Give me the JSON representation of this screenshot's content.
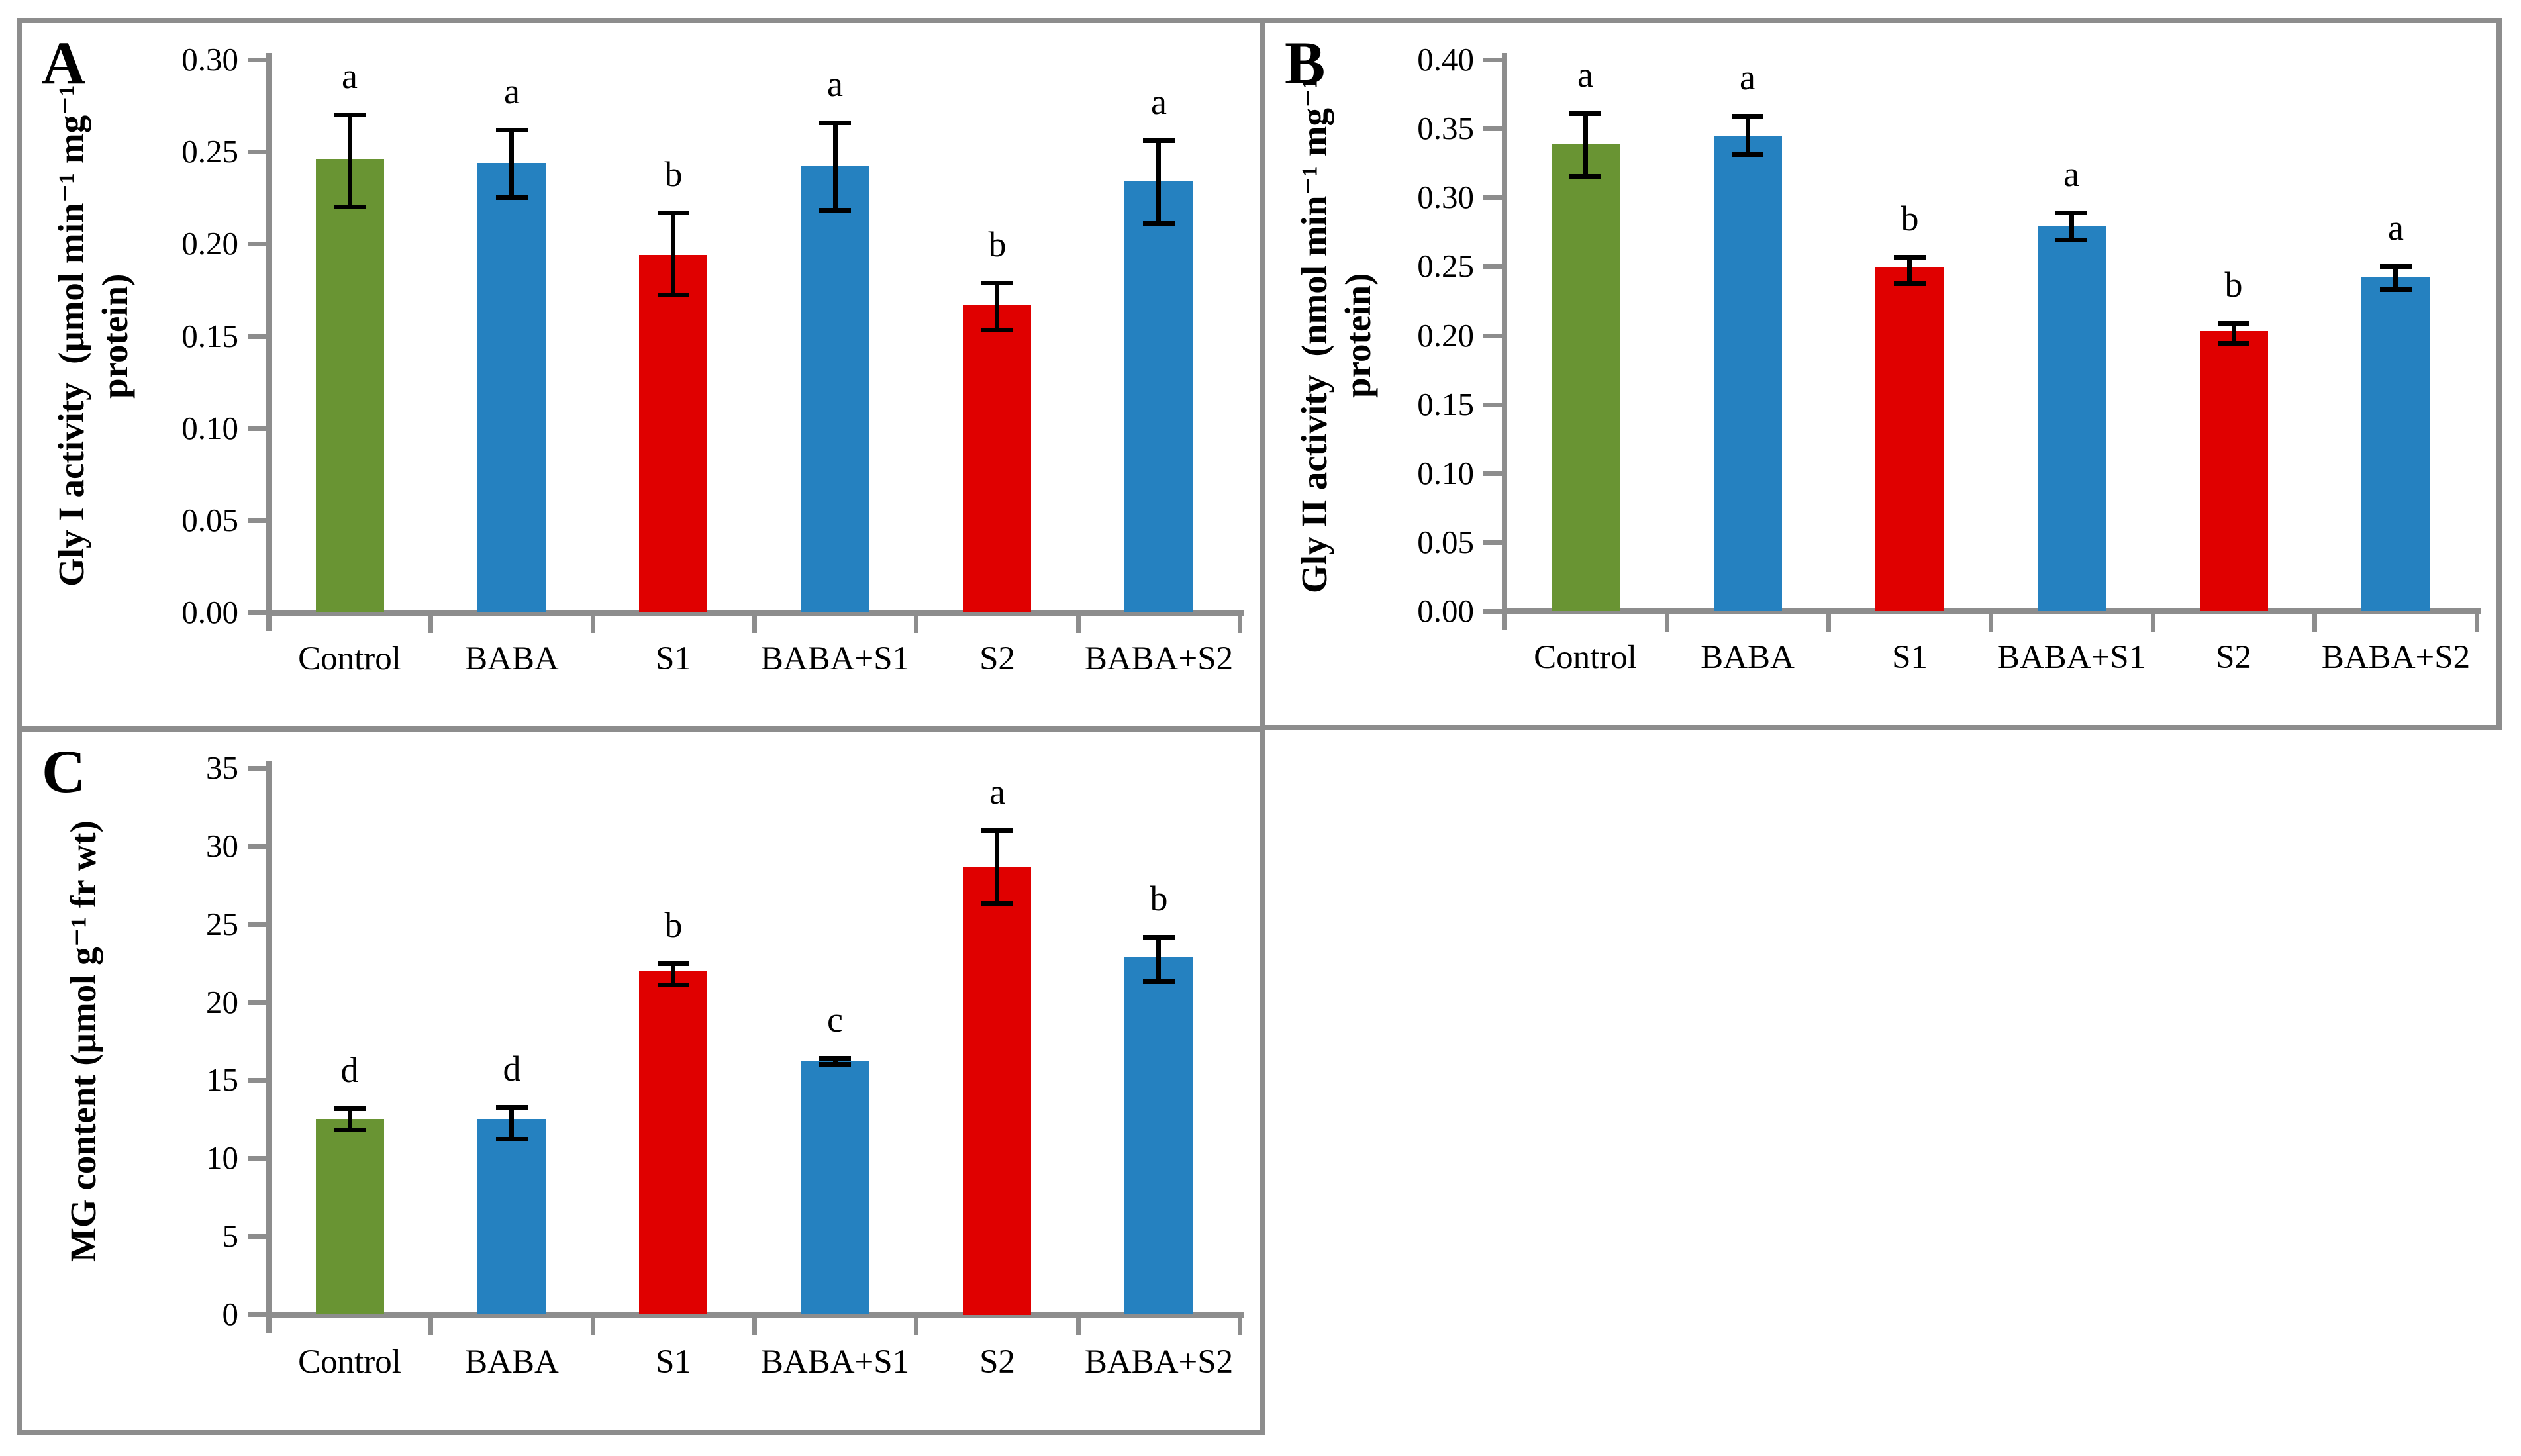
{
  "figure": {
    "background": "#ffffff",
    "border_color": "#8d8d8d",
    "panel_letters": [
      "A",
      "B",
      "C"
    ]
  },
  "palette": {
    "green": "#699433",
    "blue": "#2581c0",
    "red": "#e00000",
    "axis_gray": "#8d8d8d",
    "error_black": "#000000"
  },
  "chart_data": [
    {
      "panel": "A",
      "type": "bar",
      "ylabel_lines": [
        "Gly I activity  (μmol min⁻¹ mg⁻¹",
        "protein)"
      ],
      "ylim": [
        0,
        0.3
      ],
      "grid": false,
      "legend": "none",
      "ytick_labels": [
        "0.00",
        "0.05",
        "0.10",
        "0.15",
        "0.20",
        "0.25",
        "0.30"
      ],
      "categories": [
        "Control",
        "BABA",
        "S1",
        "BABA+S1",
        "S2",
        "BABA+S2"
      ],
      "values": [
        0.246,
        0.244,
        0.194,
        0.242,
        0.167,
        0.234
      ],
      "err_low": [
        0.22,
        0.225,
        0.172,
        0.218,
        0.153,
        0.211
      ],
      "err_high": [
        0.27,
        0.262,
        0.217,
        0.266,
        0.179,
        0.256
      ],
      "sig_letters": [
        "a",
        "a",
        "b",
        "a",
        "b",
        "a"
      ],
      "bar_colors": [
        "green",
        "blue",
        "red",
        "blue",
        "red",
        "blue"
      ]
    },
    {
      "panel": "B",
      "type": "bar",
      "ylabel_lines": [
        "Gly II activity  (nmol min⁻¹ mg⁻¹",
        "protein)"
      ],
      "ylim": [
        0,
        0.4
      ],
      "grid": false,
      "legend": "none",
      "ytick_labels": [
        "0.00",
        "0.05",
        "0.10",
        "0.15",
        "0.20",
        "0.25",
        "0.30",
        "0.35",
        "0.40"
      ],
      "categories": [
        "Control",
        "BABA",
        "S1",
        "BABA+S1",
        "S2",
        "BABA+S2"
      ],
      "values": [
        0.339,
        0.345,
        0.249,
        0.279,
        0.203,
        0.242
      ],
      "err_low": [
        0.315,
        0.331,
        0.237,
        0.269,
        0.194,
        0.233
      ],
      "err_high": [
        0.361,
        0.359,
        0.257,
        0.289,
        0.209,
        0.25
      ],
      "sig_letters": [
        "a",
        "a",
        "b",
        "a",
        "b",
        "a"
      ],
      "bar_colors": [
        "green",
        "blue",
        "red",
        "blue",
        "red",
        "blue"
      ]
    },
    {
      "panel": "C",
      "type": "bar",
      "ylabel_lines": [
        "MG content (μmol g⁻¹ fr wt)"
      ],
      "ylim": [
        0,
        35
      ],
      "grid": false,
      "legend": "none",
      "ytick_labels": [
        "0",
        "5",
        "10",
        "15",
        "20",
        "25",
        "30",
        "35"
      ],
      "categories": [
        "Control",
        "BABA",
        "S1",
        "BABA+S1",
        "S2",
        "BABA+S2"
      ],
      "values": [
        12.5,
        12.5,
        22.0,
        16.2,
        28.7,
        22.9
      ],
      "err_low": [
        11.8,
        11.2,
        21.1,
        16.0,
        26.3,
        21.3
      ],
      "err_high": [
        13.2,
        13.3,
        22.5,
        16.4,
        31.0,
        24.2
      ],
      "sig_letters": [
        "d",
        "d",
        "b",
        "c",
        "a",
        "b"
      ],
      "bar_colors": [
        "green",
        "blue",
        "red",
        "blue",
        "red",
        "blue"
      ]
    }
  ]
}
